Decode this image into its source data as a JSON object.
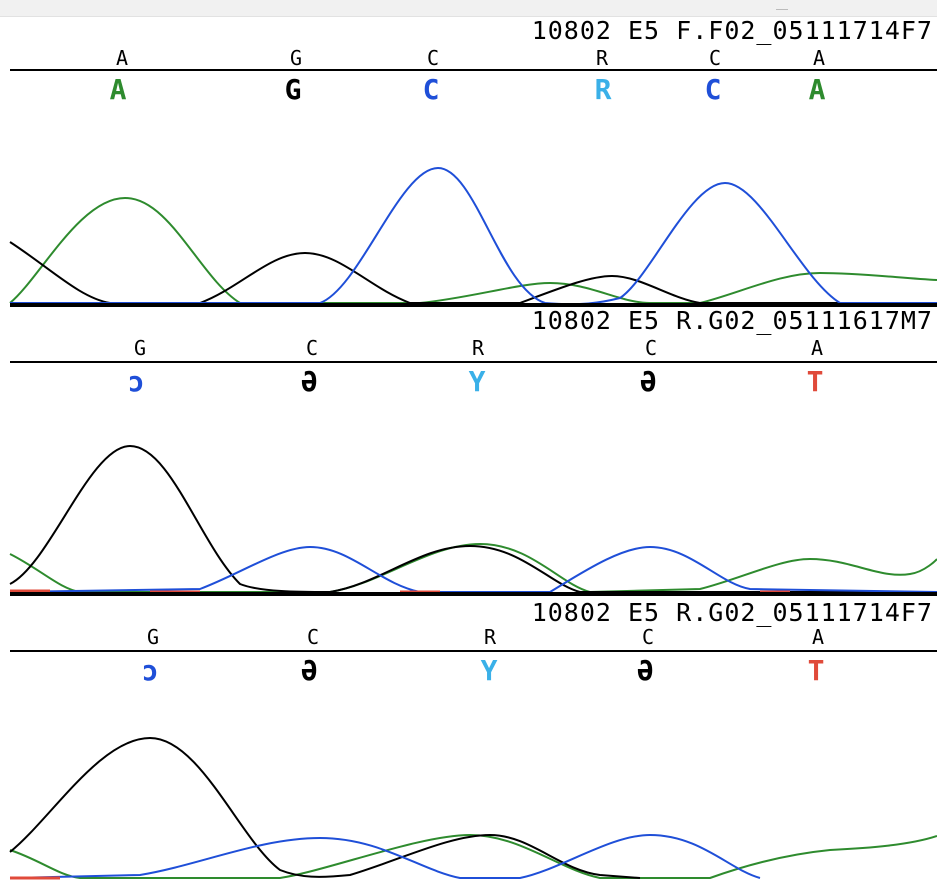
{
  "panels": [
    {
      "title": "10802 E5 F.F02_05111714F7",
      "reference": [
        "A",
        "G",
        "C",
        "R",
        "C",
        "A"
      ],
      "calls": [
        {
          "base": "A",
          "color": "#2e8b2e"
        },
        {
          "base": "G",
          "color": "#000000"
        },
        {
          "base": "C",
          "color": "#1f4fd8"
        },
        {
          "base": "R",
          "color": "#3ab0e8"
        },
        {
          "base": "C",
          "color": "#1f4fd8"
        },
        {
          "base": "A",
          "color": "#2e8b2e"
        }
      ]
    },
    {
      "title": "10802 E5 R.G02_05111617M7",
      "reference": [
        "G",
        "C",
        "R",
        "C",
        "A"
      ],
      "calls": [
        {
          "base": "ɔ",
          "color": "#1f4fd8"
        },
        {
          "base": "Ә",
          "color": "#000000"
        },
        {
          "base": "Y",
          "color": "#3ab0e8"
        },
        {
          "base": "Ә",
          "color": "#000000"
        },
        {
          "base": "T",
          "color": "#e04a3a"
        }
      ]
    },
    {
      "title": "10802 E5 R.G02_05111714F7",
      "reference": [
        "G",
        "C",
        "R",
        "C",
        "A"
      ],
      "calls": [
        {
          "base": "ɔ",
          "color": "#1f4fd8"
        },
        {
          "base": "Ә",
          "color": "#000000"
        },
        {
          "base": "Y",
          "color": "#3ab0e8"
        },
        {
          "base": "Ә",
          "color": "#000000"
        },
        {
          "base": "T",
          "color": "#e04a3a"
        }
      ]
    }
  ],
  "trace_colors": {
    "green": "#2e8b2e",
    "black": "#000000",
    "blue": "#1f4fd8",
    "red": "#e04a3a"
  }
}
